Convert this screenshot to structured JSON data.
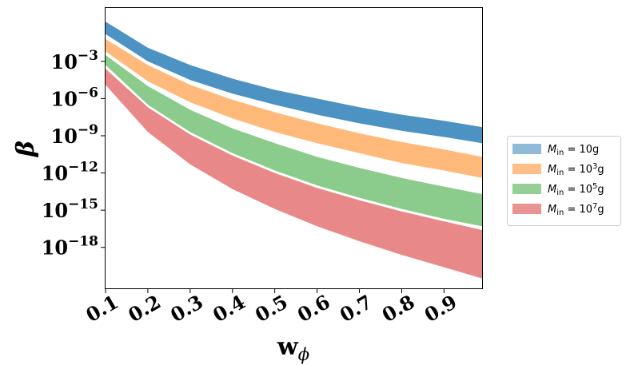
{
  "chart_data": {
    "type": "area",
    "xlabel": "w",
    "xlabel_sub": "ϕ",
    "ylabel": "β",
    "x_range": [
      0.1,
      0.99
    ],
    "y_scale": "log",
    "y_log10_range": [
      -21.3,
      1.3
    ],
    "x_ticks": [
      {
        "value": 0.1,
        "label": "0.1"
      },
      {
        "value": 0.2,
        "label": "0.2"
      },
      {
        "value": 0.3,
        "label": "0.3"
      },
      {
        "value": 0.4,
        "label": "0.4"
      },
      {
        "value": 0.5,
        "label": "0.5"
      },
      {
        "value": 0.6,
        "label": "0.6"
      },
      {
        "value": 0.7,
        "label": "0.7"
      },
      {
        "value": 0.8,
        "label": "0.8"
      },
      {
        "value": 0.9,
        "label": "0.9"
      }
    ],
    "y_ticks": [
      {
        "log10": -3,
        "base": "10",
        "exp": "−3"
      },
      {
        "log10": -6,
        "base": "10",
        "exp": "−6"
      },
      {
        "log10": -9,
        "base": "10",
        "exp": "−9"
      },
      {
        "log10": -12,
        "base": "10",
        "exp": "−12"
      },
      {
        "log10": -15,
        "base": "10",
        "exp": "−15"
      },
      {
        "log10": -18,
        "base": "10",
        "exp": "−18"
      }
    ],
    "grid": false,
    "legend_position": "outside-right",
    "series": [
      {
        "name": "M_in = 10g",
        "legend": {
          "var": "M",
          "sub": "in",
          "eq": " = 10",
          "sup": "",
          "unit": "g"
        },
        "color": "#1f77b4",
        "x": [
          0.1,
          0.2,
          0.3,
          0.4,
          0.5,
          0.6,
          0.7,
          0.8,
          0.9,
          0.99
        ],
        "log10_upper": [
          0.2,
          -1.9,
          -3.3,
          -4.4,
          -5.3,
          -6.0,
          -6.7,
          -7.3,
          -7.8,
          -8.3
        ],
        "log10_lower": [
          -0.8,
          -3.0,
          -4.5,
          -5.6,
          -6.5,
          -7.3,
          -8.0,
          -8.6,
          -9.1,
          -9.6
        ]
      },
      {
        "name": "M_in = 10^3g",
        "legend": {
          "var": "M",
          "sub": "in",
          "eq": " = 10",
          "sup": "3",
          "unit": "g"
        },
        "color": "#ff7f0e",
        "x": [
          0.1,
          0.2,
          0.3,
          0.4,
          0.5,
          0.6,
          0.7,
          0.8,
          0.9,
          0.99
        ],
        "log10_upper": [
          -1.2,
          -3.3,
          -4.9,
          -6.1,
          -7.1,
          -8.0,
          -8.8,
          -9.5,
          -10.1,
          -10.7
        ],
        "log10_lower": [
          -2.2,
          -4.6,
          -6.3,
          -7.6,
          -8.7,
          -9.6,
          -10.4,
          -11.2,
          -11.8,
          -12.4
        ]
      },
      {
        "name": "M_in = 10^5g",
        "legend": {
          "var": "M",
          "sub": "in",
          "eq": " = 10",
          "sup": "5",
          "unit": "g"
        },
        "color": "#2ca02c",
        "x": [
          0.1,
          0.2,
          0.3,
          0.4,
          0.5,
          0.6,
          0.7,
          0.8,
          0.9,
          0.99
        ],
        "log10_upper": [
          -2.5,
          -5.0,
          -6.9,
          -8.4,
          -9.6,
          -10.7,
          -11.6,
          -12.4,
          -13.1,
          -13.7
        ],
        "log10_lower": [
          -3.3,
          -6.5,
          -8.7,
          -10.4,
          -11.8,
          -13.0,
          -14.0,
          -14.9,
          -15.7,
          -16.3
        ]
      },
      {
        "name": "M_in = 10^7g",
        "legend": {
          "var": "M",
          "sub": "in",
          "eq": " = 10",
          "sup": "7",
          "unit": "g"
        },
        "color": "#d62728",
        "x": [
          0.1,
          0.2,
          0.3,
          0.4,
          0.5,
          0.6,
          0.7,
          0.8,
          0.9,
          0.99
        ],
        "log10_upper": [
          -3.6,
          -6.7,
          -8.9,
          -10.6,
          -12.0,
          -13.2,
          -14.2,
          -15.1,
          -15.9,
          -16.6
        ],
        "log10_lower": [
          -4.9,
          -8.7,
          -11.3,
          -13.3,
          -14.9,
          -16.3,
          -17.5,
          -18.6,
          -19.6,
          -20.5
        ]
      }
    ]
  }
}
